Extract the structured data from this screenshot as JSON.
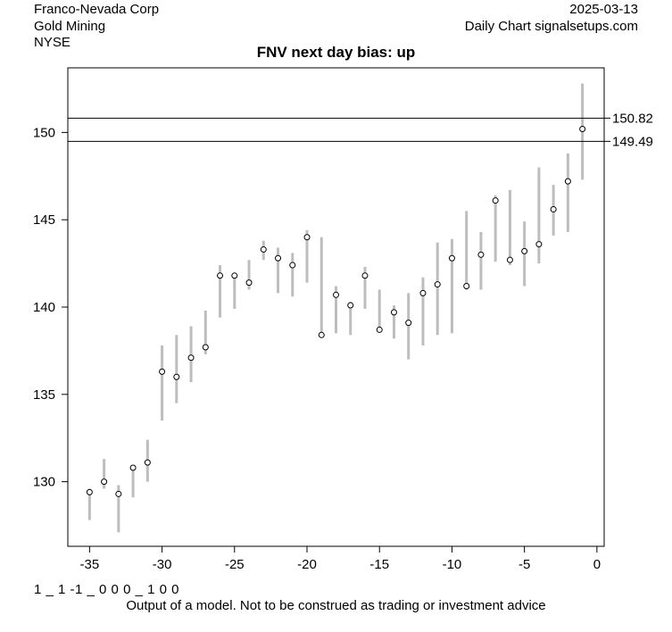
{
  "header": {
    "company": "Franco-Nevada Corp",
    "sector": "Gold Mining",
    "exchange": "NYSE",
    "date": "2025-03-13",
    "source": "Daily Chart signalsetups.com"
  },
  "footer": {
    "code": "1 _ 1 -1 _ 0 0 0 _ 1 0 0",
    "disclaimer": "Output of a model. Not to be construed as trading or investment advice"
  },
  "colors": {
    "bar": "#bdbdbd",
    "point_fill": "#ffffff",
    "point_stroke": "#000000",
    "axis": "#000000"
  },
  "chart_data": {
    "type": "scatter",
    "title": "FNV next day bias: up",
    "xlabel": "",
    "ylabel": "",
    "xlim": [
      -36.5,
      0.5
    ],
    "ylim": [
      126.3,
      153.7
    ],
    "xticks": [
      -35,
      -30,
      -25,
      -20,
      -15,
      -10,
      -5,
      0
    ],
    "yticks": [
      130,
      135,
      140,
      145,
      150
    ],
    "grid": false,
    "hlines": [
      150.82,
      149.49
    ],
    "x": [
      -35,
      -34,
      -33,
      -32,
      -31,
      -30,
      -29,
      -28,
      -27,
      -26,
      -25,
      -24,
      -23,
      -22,
      -21,
      -20,
      -19,
      -18,
      -17,
      -16,
      -15,
      -14,
      -13,
      -12,
      -11,
      -10,
      -9,
      -8,
      -7,
      -6,
      -5,
      -4,
      -3,
      -2,
      -1
    ],
    "close": [
      129.4,
      130.0,
      129.3,
      130.8,
      131.1,
      136.3,
      136.0,
      137.1,
      137.7,
      141.8,
      141.8,
      141.4,
      143.3,
      142.8,
      142.4,
      144.0,
      138.4,
      140.7,
      140.1,
      141.8,
      138.7,
      139.7,
      139.1,
      140.8,
      141.3,
      142.8,
      141.2,
      143.0,
      146.1,
      142.7,
      143.2,
      143.6,
      145.6,
      147.2,
      150.2
    ],
    "low": [
      127.8,
      129.6,
      127.1,
      129.1,
      130.0,
      133.5,
      134.5,
      135.7,
      137.3,
      139.4,
      139.9,
      141.0,
      142.7,
      140.8,
      140.6,
      141.4,
      138.4,
      138.5,
      138.4,
      139.9,
      138.6,
      138.2,
      137.0,
      137.8,
      138.4,
      138.5,
      141.0,
      141.0,
      142.6,
      142.4,
      141.2,
      142.5,
      144.1,
      144.3,
      147.3
    ],
    "high": [
      129.6,
      131.3,
      129.8,
      130.8,
      132.4,
      137.8,
      138.4,
      138.9,
      139.8,
      142.4,
      141.9,
      142.7,
      143.8,
      143.4,
      143.1,
      144.4,
      144.0,
      141.2,
      140.3,
      142.3,
      141.0,
      140.1,
      140.8,
      141.7,
      143.7,
      143.9,
      145.5,
      144.3,
      146.4,
      146.7,
      144.9,
      148.0,
      147.0,
      148.8,
      152.8
    ]
  }
}
